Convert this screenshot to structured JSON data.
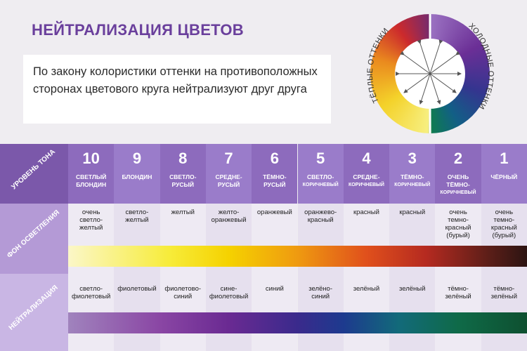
{
  "header": {
    "title": "НЕЙТРАЛИЗАЦИЯ ЦВЕТОВ",
    "intro": "По закону колористики оттенки на противоположных сторонах цветового круга нейтрализуют друг друга",
    "warm_label": "ТЁПЛЫЕ ОТТЕНКИ",
    "cool_label": "ХОЛОДНЫЕ ОТТЕНКИ"
  },
  "table": {
    "row_labels": [
      "УРОВЕНЬ ТОНА",
      "ФОН ОСВЕТЛЕНИЯ",
      "НЕЙТРАЛИЗАЦИЯ"
    ],
    "columns": [
      {
        "level": "10",
        "name": [
          "СВЕТЛЫЙ",
          "БЛОНДИН"
        ],
        "background": [
          "очень",
          "светло-",
          "желтый"
        ],
        "neutralization": [
          "светло-",
          "фиолетовый"
        ]
      },
      {
        "level": "9",
        "name": [
          "БЛОНДИН"
        ],
        "background": [
          "светло-",
          "желтый"
        ],
        "neutralization": [
          "фиолетовый"
        ]
      },
      {
        "level": "8",
        "name": [
          "СВЕТЛО-",
          "РУСЫЙ"
        ],
        "background": [
          "желтый"
        ],
        "neutralization": [
          "фиолетово-",
          "синий"
        ]
      },
      {
        "level": "7",
        "name": [
          "СРЕДНЕ-",
          "РУСЫЙ"
        ],
        "background": [
          "желто-",
          "оранжевый"
        ],
        "neutralization": [
          "сине-",
          "фиолетовый"
        ]
      },
      {
        "level": "6",
        "name": [
          "ТЁМНО-",
          "РУСЫЙ"
        ],
        "background": [
          "оранжевый"
        ],
        "neutralization": [
          "синий"
        ]
      },
      {
        "level": "5",
        "name": [
          "СВЕТЛО-",
          "КОРИЧНЕВЫЙ"
        ],
        "background": [
          "оранжево-",
          "красный"
        ],
        "neutralization": [
          "зелёно-",
          "синий"
        ]
      },
      {
        "level": "4",
        "name": [
          "СРЕДНЕ-",
          "КОРИЧНЕВЫЙ"
        ],
        "background": [
          "красный"
        ],
        "neutralization": [
          "зелёный"
        ]
      },
      {
        "level": "3",
        "name": [
          "ТЁМНО-",
          "КОРИЧНЕВЫЙ"
        ],
        "background": [
          "красный"
        ],
        "neutralization": [
          "зелёный"
        ]
      },
      {
        "level": "2",
        "name": [
          "ОЧЕНЬ",
          "ТЁМНО-",
          "КОРИЧНЕВЫЙ"
        ],
        "background": [
          "очень",
          "темно-",
          "красный",
          "(бурый)"
        ],
        "neutralization": [
          "тёмно-",
          "зелёный"
        ]
      },
      {
        "level": "1",
        "name": [
          "ЧЁРНЫЙ"
        ],
        "background": [
          "очень",
          "темно-",
          "красный",
          "(бурый)"
        ],
        "neutralization": [
          "тёмно-",
          "зелёный"
        ]
      }
    ]
  }
}
